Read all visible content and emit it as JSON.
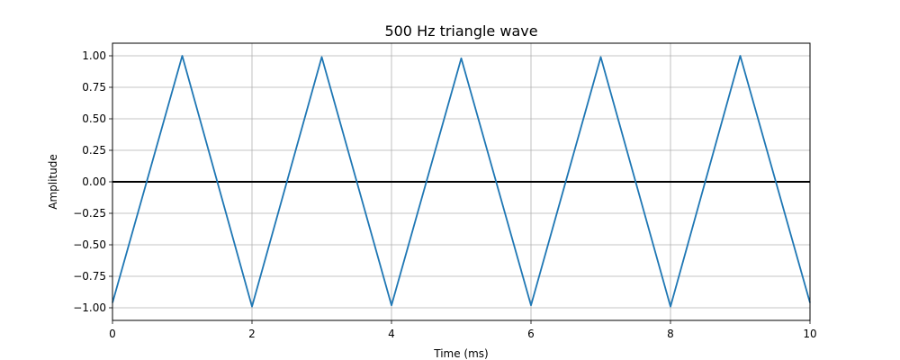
{
  "chart_data": {
    "type": "line",
    "title": "500 Hz triangle wave",
    "xlabel": "Time (ms)",
    "ylabel": "Amplitude",
    "xlim": [
      0,
      10
    ],
    "ylim": [
      -1.1,
      1.1
    ],
    "xticks": [
      0,
      2,
      4,
      6,
      8,
      10
    ],
    "xtick_labels": [
      "0",
      "2",
      "4",
      "6",
      "8",
      "10"
    ],
    "yticks": [
      -1.0,
      -0.75,
      -0.5,
      -0.25,
      0.0,
      0.25,
      0.5,
      0.75,
      1.0
    ],
    "ytick_labels": [
      "−1.00",
      "−0.75",
      "−0.50",
      "−0.25",
      "0.00",
      "0.25",
      "0.50",
      "0.75",
      "1.00"
    ],
    "grid": true,
    "reference_line": {
      "y": 0.0,
      "color": "#000000"
    },
    "series": [
      {
        "color": "#1f77b4",
        "x": [
          0,
          1,
          2,
          3,
          4,
          5,
          6,
          7,
          8,
          9,
          10
        ],
        "y": [
          -0.96,
          1.0,
          -0.99,
          0.99,
          -0.98,
          0.98,
          -0.98,
          0.99,
          -0.99,
          1.0,
          -0.96
        ]
      }
    ]
  }
}
